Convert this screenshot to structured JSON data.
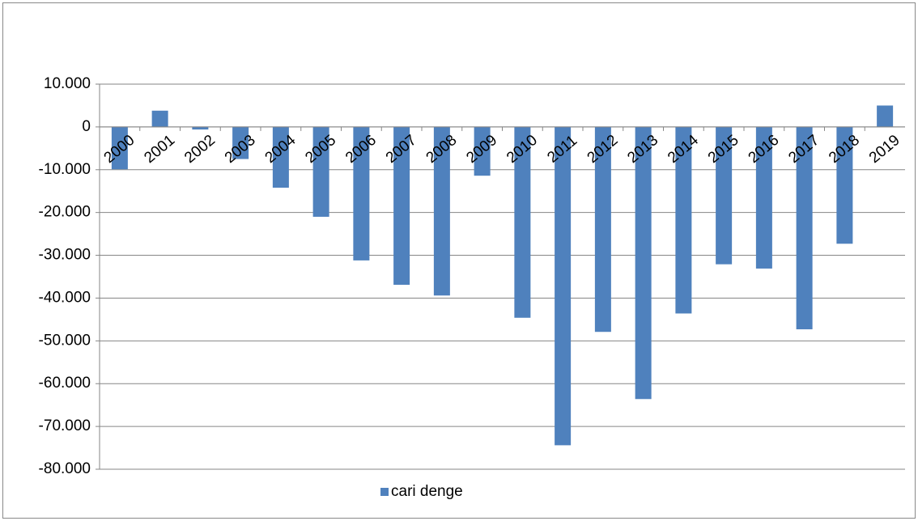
{
  "chart_data": {
    "type": "bar",
    "categories": [
      "2000",
      "2001",
      "2002",
      "2003",
      "2004",
      "2005",
      "2006",
      "2007",
      "2008",
      "2009",
      "2010",
      "2011",
      "2012",
      "2013",
      "2014",
      "2015",
      "2016",
      "2017",
      "2018",
      "2019"
    ],
    "series": [
      {
        "name": "cari denge",
        "color": "#4f81bd",
        "values": [
          -9900,
          3800,
          -600,
          -7500,
          -14200,
          -21000,
          -31200,
          -36900,
          -39400,
          -11400,
          -44600,
          -74400,
          -47900,
          -63600,
          -43600,
          -32100,
          -33100,
          -47300,
          -27300,
          5000
        ]
      }
    ],
    "ylim": [
      -80000,
      10000
    ],
    "yticks": [
      {
        "value": 10000,
        "label": "10.000"
      },
      0,
      {
        "value": -10000,
        "label": "-10.000"
      },
      {
        "value": -20000,
        "label": "-20.000"
      },
      {
        "value": -30000,
        "label": "-30.000"
      },
      {
        "value": -40000,
        "label": "-40.000"
      },
      {
        "value": -50000,
        "label": "-50.000"
      },
      {
        "value": -60000,
        "label": "-60.000"
      },
      {
        "value": -70000,
        "label": "-70.000"
      },
      {
        "value": -80000,
        "label": "-80.000"
      }
    ],
    "grid": true
  }
}
